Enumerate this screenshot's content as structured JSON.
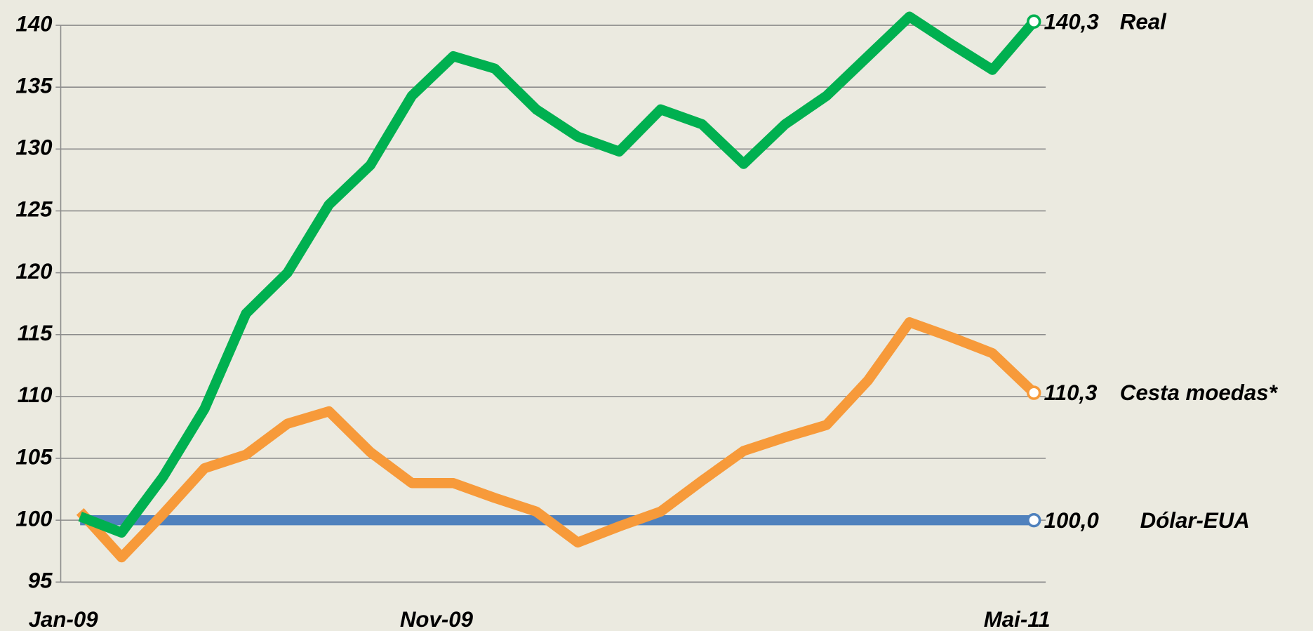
{
  "chart_data": {
    "type": "line",
    "categories": [
      "Jan-09",
      null,
      null,
      null,
      null,
      null,
      null,
      null,
      null,
      "Nov-09",
      null,
      null,
      null,
      null,
      null,
      null,
      null,
      null,
      null,
      null,
      null,
      null,
      null,
      "Mai-11"
    ],
    "series": [
      {
        "name": "Dólar-EUA",
        "color": "#4f81bd",
        "end_label": "100,0",
        "values": [
          100,
          100,
          100,
          100,
          100,
          100,
          100,
          100,
          100,
          100,
          100,
          100,
          100,
          100,
          100,
          100,
          100,
          100,
          100,
          100,
          100,
          100,
          100,
          100
        ]
      },
      {
        "name": "Cesta moedas*",
        "color": "#f79a3a",
        "end_label": "110,3",
        "values": [
          100.7,
          97,
          100.5,
          104.2,
          105.3,
          107.8,
          108.8,
          105.5,
          103,
          103,
          101.8,
          100.7,
          98.2,
          99.5,
          100.7,
          103.2,
          105.6,
          106.7,
          107.7,
          111.3,
          116,
          114.8,
          113.5,
          110.3
        ]
      },
      {
        "name": "Real",
        "color": "#00b050",
        "end_label": "140,3",
        "values": [
          100.3,
          99,
          103.5,
          109,
          116.7,
          120,
          125.5,
          128.7,
          134.3,
          137.5,
          136.5,
          133.2,
          131,
          129.8,
          133.2,
          132,
          128.8,
          132,
          134.3,
          137.5,
          140.7,
          138.5,
          136.4,
          140.3
        ]
      }
    ],
    "ylim": [
      95,
      140
    ],
    "yticks": [
      95,
      100,
      105,
      110,
      115,
      120,
      125,
      130,
      135,
      140
    ],
    "grid": true
  }
}
